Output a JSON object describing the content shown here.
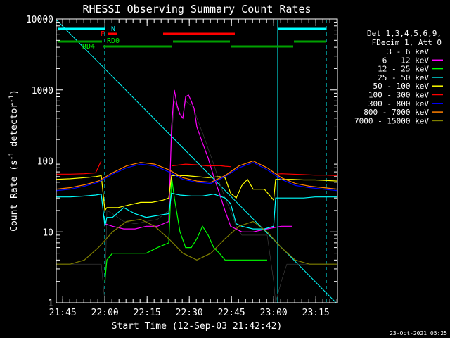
{
  "chart_data": {
    "type": "line",
    "title": "RHESSI Observing Summary Count Rates",
    "xlabel": "Start Time (12-Sep-03 21:42:42)",
    "ylabel": "Count Rate (s⁻¹ detector⁻¹)",
    "ylabel_parts": [
      "Count Rate (s",
      "-1",
      " detector",
      "-1",
      ")"
    ],
    "x_unit": "minutes after 21:42:42",
    "xlim": [
      0,
      100
    ],
    "ylim": [
      1,
      10000
    ],
    "yscale": "log",
    "x_ticks": [
      {
        "label": "21:45",
        "x": 2.3
      },
      {
        "label": "22:00",
        "x": 17.3
      },
      {
        "label": "22:15",
        "x": 32.3
      },
      {
        "label": "22:30",
        "x": 47.3
      },
      {
        "label": "22:45",
        "x": 62.3
      },
      {
        "label": "23:00",
        "x": 77.3
      },
      {
        "label": "23:15",
        "x": 92.3
      }
    ],
    "y_ticks": [
      {
        "label": "1",
        "y": 1
      },
      {
        "label": "10",
        "y": 10
      },
      {
        "label": "100",
        "y": 100
      },
      {
        "label": "1000",
        "y": 1000
      },
      {
        "label": "10000",
        "y": 10000
      }
    ],
    "legend_header": [
      "Det 1,3,4,5,6,9,",
      "FDecim 1, Att 0"
    ],
    "legend_placement": "right",
    "series": [
      {
        "name": "3 - 6 keV",
        "color": "#000000",
        "x": [
          0,
          5,
          10,
          14,
          16,
          17.3,
          18,
          20,
          24,
          28,
          32,
          36,
          40,
          41,
          42,
          43,
          44,
          45,
          46,
          47,
          48,
          49,
          50,
          52,
          54,
          56,
          58,
          60,
          62,
          64,
          66,
          70,
          75,
          77.3,
          78,
          80,
          82,
          84,
          86,
          90,
          95,
          100
        ],
        "y": [
          3.5,
          3.5,
          3.5,
          3.5,
          3.5,
          1,
          20,
          18,
          14,
          13,
          14,
          15,
          20,
          200,
          700,
          550,
          450,
          400,
          700,
          650,
          600,
          550,
          400,
          250,
          150,
          90,
          50,
          30,
          20,
          12,
          9,
          9,
          9,
          2,
          1,
          2,
          3.5,
          3.5,
          3.5,
          3.5,
          3.5,
          3.5
        ]
      },
      {
        "name": "6 - 12 keV",
        "color": "#ff00ff",
        "x": [
          0,
          16,
          17.3,
          20,
          24,
          28,
          32,
          36,
          40,
          41,
          42,
          43,
          44,
          45,
          46,
          47,
          48,
          49,
          50,
          52,
          54,
          56,
          58,
          60,
          62,
          66,
          70,
          75,
          80,
          84,
          100
        ],
        "y": [
          null,
          null,
          13,
          12,
          11,
          11,
          12,
          12,
          14,
          300,
          1000,
          600,
          450,
          400,
          800,
          850,
          700,
          550,
          300,
          180,
          110,
          60,
          35,
          20,
          12,
          10,
          10,
          11,
          12,
          12,
          null
        ]
      },
      {
        "name": "12 - 25 keV",
        "color": "#00ff00",
        "x": [
          0,
          14,
          16,
          17.3,
          18,
          20,
          24,
          28,
          32,
          36,
          40,
          41,
          42,
          44,
          46,
          48,
          50,
          52,
          54,
          56,
          58,
          60,
          62,
          66,
          70,
          75,
          78,
          80,
          84,
          88,
          100
        ],
        "y": [
          null,
          null,
          null,
          2,
          4,
          5,
          5,
          5,
          5,
          6,
          7,
          60,
          30,
          10,
          6,
          6,
          8,
          12,
          9,
          6,
          5,
          4,
          4,
          4,
          4,
          4,
          null,
          null,
          null,
          null,
          null
        ]
      },
      {
        "name": "25 - 50 keV",
        "color": "#00ffff",
        "x": [
          0,
          5,
          10,
          14,
          16,
          17.3,
          18,
          20,
          24,
          28,
          32,
          36,
          40,
          41,
          44,
          48,
          52,
          56,
          60,
          62,
          64,
          66,
          70,
          74,
          77.3,
          78,
          80,
          82,
          84,
          88,
          92,
          96,
          100
        ],
        "y": [
          31,
          31,
          32,
          33,
          34,
          12,
          16,
          16,
          22,
          18,
          16,
          17,
          18,
          35,
          33,
          32,
          32,
          34,
          30,
          25,
          13,
          12,
          11,
          11,
          12,
          30,
          30,
          30,
          30,
          30,
          31,
          31,
          31
        ]
      },
      {
        "name": "50 - 100 keV",
        "color": "#ffff00",
        "x": [
          0,
          5,
          10,
          14,
          16,
          17.3,
          18,
          22,
          26,
          30,
          34,
          38,
          40,
          41,
          46,
          50,
          54,
          58,
          60,
          62,
          64,
          66,
          68,
          70,
          74,
          77.3,
          78,
          80,
          84,
          88,
          92,
          96,
          100
        ],
        "y": [
          55,
          56,
          58,
          60,
          62,
          20,
          22,
          22,
          24,
          26,
          26,
          28,
          30,
          62,
          62,
          60,
          58,
          60,
          58,
          35,
          30,
          45,
          55,
          40,
          40,
          28,
          55,
          55,
          55,
          54,
          54,
          53,
          52
        ]
      },
      {
        "name": "100 - 300 keV",
        "color": "#ff0000",
        "x": [
          0,
          5,
          10,
          14,
          16,
          17.3,
          18,
          22,
          26,
          30,
          34,
          38,
          40,
          41,
          46,
          50,
          54,
          58,
          60,
          62,
          64,
          66,
          70,
          74,
          77.3,
          78,
          80,
          84,
          88,
          92,
          96,
          100
        ],
        "y": [
          65,
          65,
          66,
          68,
          100,
          null,
          null,
          null,
          null,
          null,
          null,
          null,
          null,
          85,
          90,
          88,
          85,
          86,
          84,
          83,
          null,
          null,
          null,
          null,
          null,
          65,
          66,
          65,
          64,
          63,
          63,
          62
        ]
      },
      {
        "name": "300 - 800 keV",
        "color": "#0000ff",
        "x": [
          0,
          5,
          10,
          15,
          20,
          25,
          30,
          35,
          40,
          45,
          50,
          55,
          60,
          65,
          70,
          75,
          80,
          85,
          90,
          95,
          100
        ],
        "y": [
          38,
          40,
          44,
          50,
          65,
          80,
          90,
          85,
          70,
          55,
          50,
          48,
          60,
          80,
          95,
          75,
          55,
          45,
          42,
          40,
          38
        ]
      },
      {
        "name": "800 - 7000 keV",
        "color": "#ff8000",
        "x": [
          0,
          5,
          10,
          15,
          20,
          25,
          30,
          35,
          40,
          45,
          50,
          55,
          60,
          65,
          70,
          75,
          80,
          85,
          90,
          95,
          100
        ],
        "y": [
          40,
          42,
          46,
          52,
          68,
          85,
          95,
          90,
          75,
          58,
          52,
          50,
          62,
          85,
          100,
          80,
          58,
          48,
          44,
          42,
          40
        ]
      },
      {
        "name": "7000 - 15000 keV",
        "color": "#808000",
        "x": [
          0,
          5,
          10,
          15,
          20,
          25,
          30,
          35,
          40,
          45,
          50,
          55,
          60,
          65,
          70,
          75,
          80,
          85,
          90,
          95,
          100
        ],
        "y": [
          3.5,
          3.5,
          4,
          6,
          10,
          14,
          15,
          12,
          8,
          5,
          4,
          5,
          8,
          12,
          14,
          10,
          6,
          4,
          3.5,
          3.5,
          3.5
        ]
      }
    ],
    "annotations": [
      {
        "label": "N",
        "color": "#00ffff"
      },
      {
        "label": "F",
        "color": "#ff0000"
      },
      {
        "label": "RD0",
        "color": "#00ff00"
      },
      {
        "label": "RD4",
        "color": "#00ff00"
      }
    ],
    "footer": "23-Oct-2021 05:25"
  }
}
